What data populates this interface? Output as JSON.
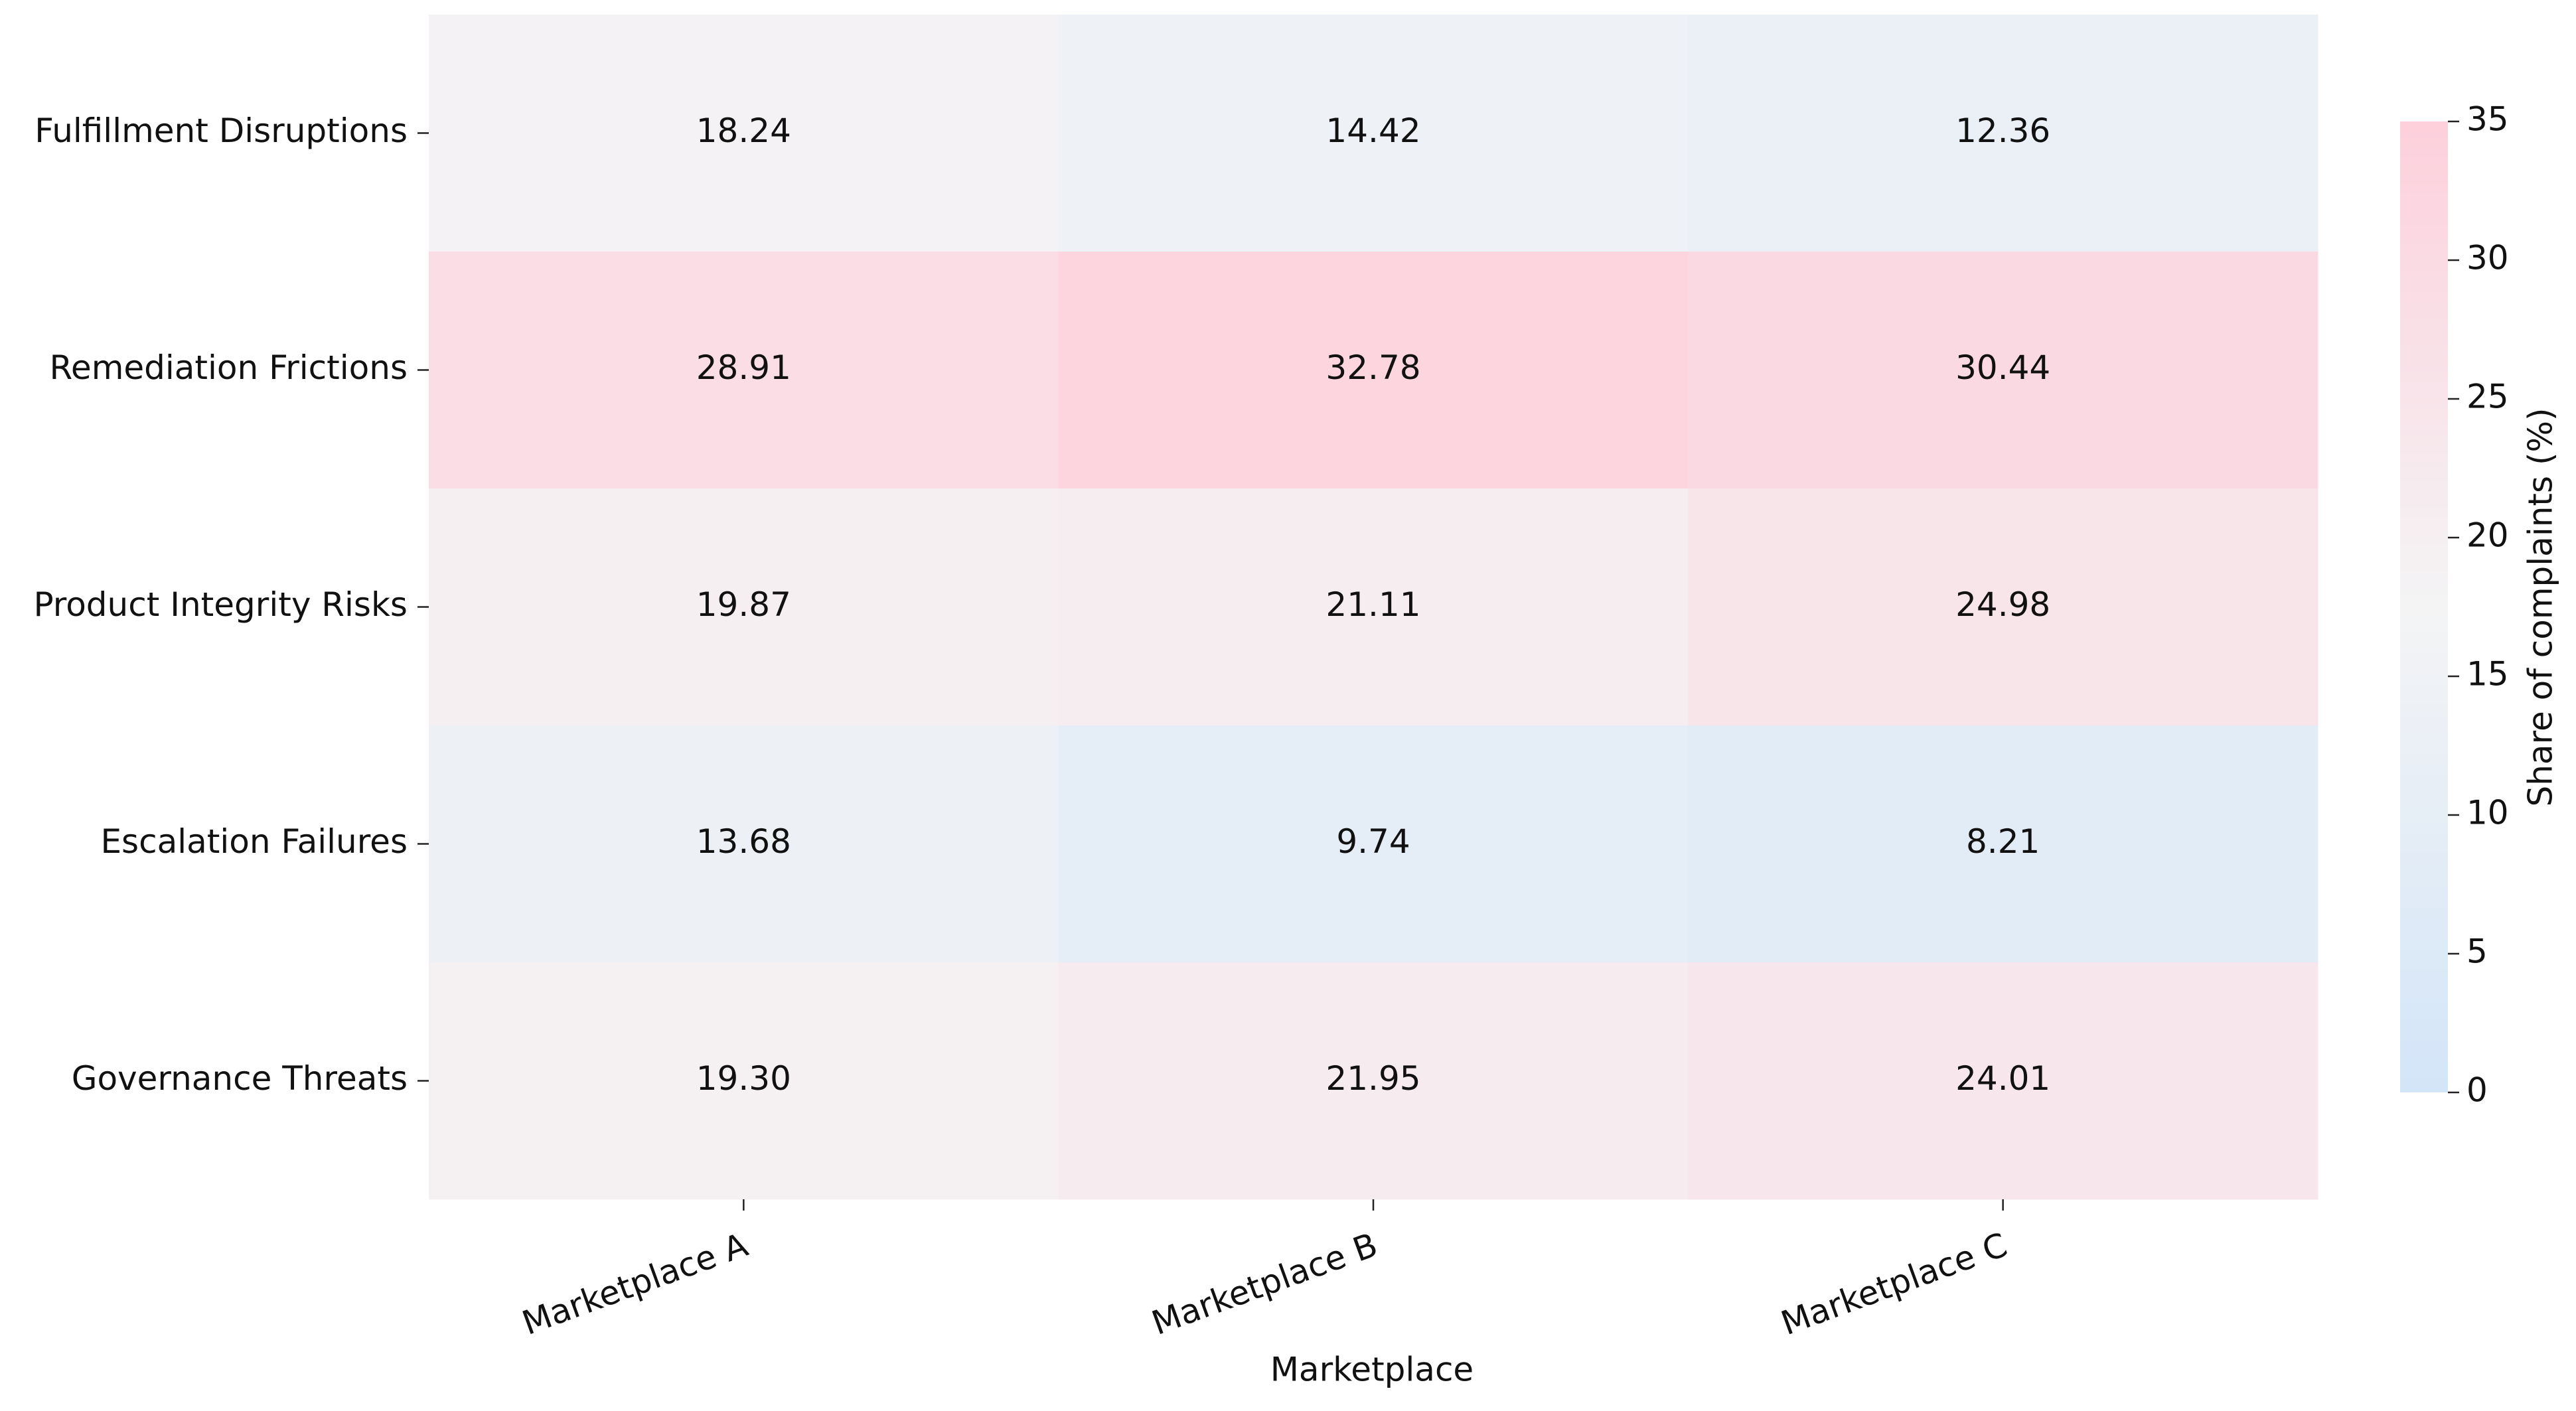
{
  "chart_data": {
    "type": "heatmap",
    "x_label": "Marketplace",
    "categories": [
      "Marketplace A",
      "Marketplace B",
      "Marketplace C"
    ],
    "rows": [
      "Fulfillment Disruptions",
      "Remediation Frictions",
      "Product Integrity Risks",
      "Escalation Failures",
      "Governance Threats"
    ],
    "values": [
      [
        18.24,
        14.42,
        12.36
      ],
      [
        28.91,
        32.78,
        30.44
      ],
      [
        19.87,
        21.11,
        24.98
      ],
      [
        13.68,
        9.74,
        8.21
      ],
      [
        19.3,
        21.95,
        24.01
      ]
    ],
    "value_labels": [
      [
        "18.24",
        "14.42",
        "12.36"
      ],
      [
        "28.91",
        "32.78",
        "30.44"
      ],
      [
        "19.87",
        "21.11",
        "24.98"
      ],
      [
        "13.68",
        "9.74",
        "8.21"
      ],
      [
        "19.30",
        "21.95",
        "24.01"
      ]
    ],
    "colorbar_label": "Share of complaints (%)",
    "clim": [
      0,
      35
    ],
    "cticks": [
      0,
      5,
      10,
      15,
      20,
      25,
      30,
      35
    ],
    "colormap": [
      "#d3e5f8",
      "#f4f4f5",
      "#fdd0dc"
    ]
  }
}
